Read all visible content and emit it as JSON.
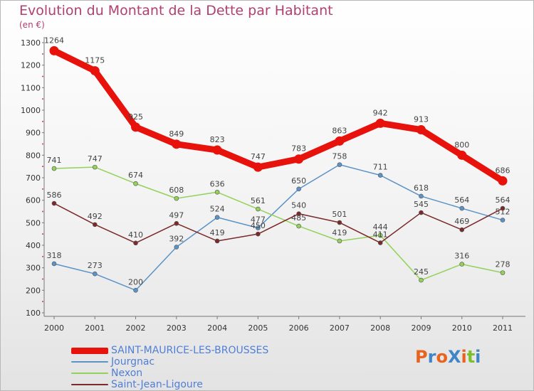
{
  "title": "Evolution du Montant de la Dette par Habitant",
  "unit_label": "(en €)",
  "logo": {
    "text": "ProXiti",
    "colors": [
      "#e8641e",
      "#3f86c8",
      "#e8641e",
      "#3f86c8",
      "#e8641e",
      "#7bbf2e",
      "#3f86c8"
    ]
  },
  "chart_data": {
    "type": "line",
    "title": "Evolution du Montant de la Dette par Habitant",
    "ylabel": "(en €)",
    "x": [
      "2000",
      "2001",
      "2002",
      "2003",
      "2004",
      "2005",
      "2006",
      "2007",
      "2008",
      "2009",
      "2010",
      "2011"
    ],
    "ylim": [
      100,
      1300
    ],
    "yticks": [
      100,
      200,
      300,
      400,
      500,
      600,
      700,
      800,
      900,
      1000,
      1100,
      1200,
      1300
    ],
    "grid": false,
    "legend_position": "bottom",
    "series": [
      {
        "name": "SAINT-MAURICE-LES-BROUSSES",
        "color": "#e8120c",
        "values": [
          1264,
          1175,
          925,
          849,
          823,
          747,
          783,
          863,
          942,
          913,
          800,
          686
        ]
      },
      {
        "name": "Jourgnac",
        "color": "#5b93c7",
        "values": [
          318,
          273,
          200,
          392,
          524,
          477,
          650,
          758,
          711,
          618,
          564,
          512
        ]
      },
      {
        "name": "Nexon",
        "color": "#93d15b",
        "values": [
          741,
          747,
          674,
          608,
          636,
          561,
          485,
          419,
          444,
          245,
          316,
          278
        ]
      },
      {
        "name": "Saint-Jean-Ligoure",
        "color": "#7a2a2a",
        "values": [
          586,
          492,
          410,
          497,
          419,
          450,
          540,
          501,
          411,
          545,
          469,
          564
        ]
      }
    ]
  }
}
